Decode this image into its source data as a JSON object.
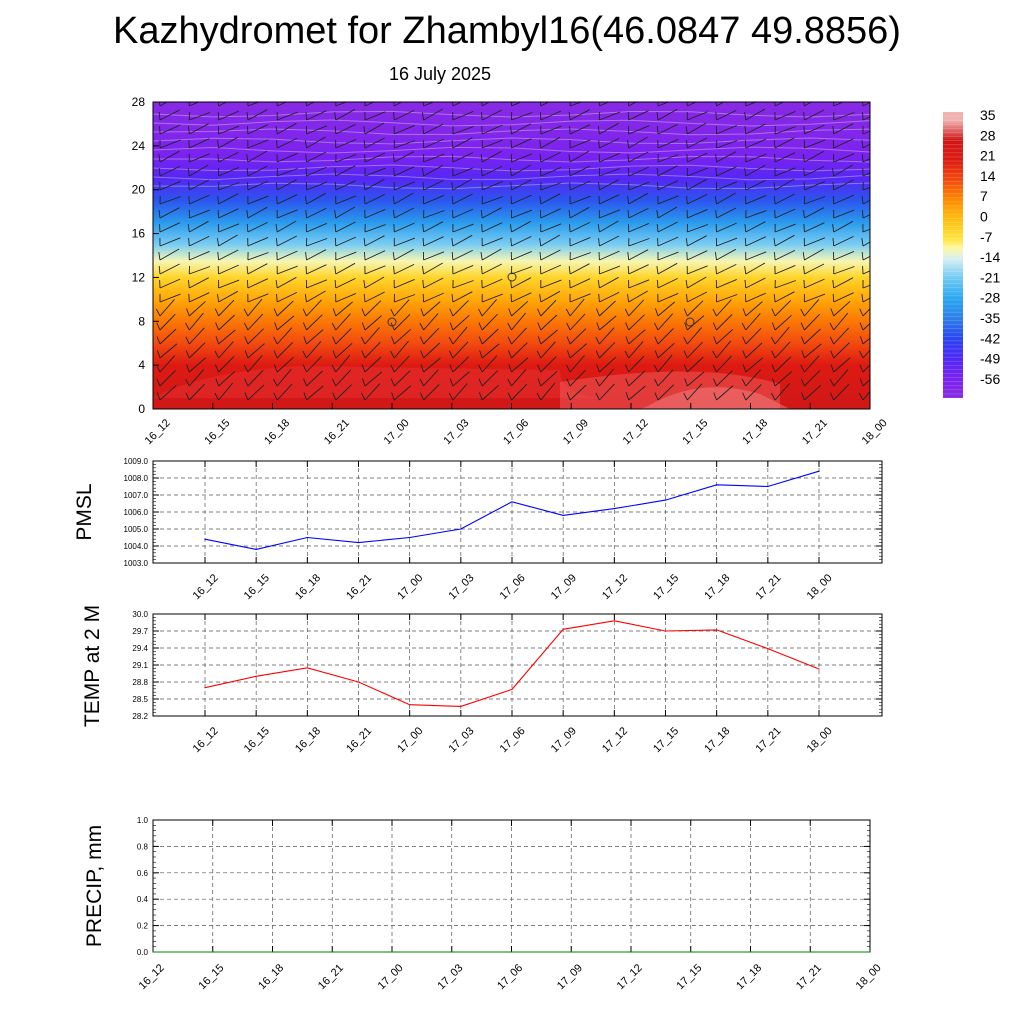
{
  "header": {
    "title": "Kazhydromet for Zhambyl16(46.0847 49.8856)",
    "subtitle": "16 July 2025"
  },
  "chart_data": [
    {
      "type": "heatmap",
      "x": [
        "16_12",
        "16_15",
        "16_18",
        "16_21",
        "17_00",
        "17_03",
        "17_06",
        "17_09",
        "17_12",
        "17_15",
        "17_18",
        "17_21",
        "18_00"
      ],
      "y_ticks": [
        0,
        4,
        8,
        12,
        16,
        20,
        24,
        28
      ],
      "ylim": [
        0,
        28
      ],
      "colorbar_ticks": [
        35,
        28,
        21,
        14,
        7,
        0,
        -7,
        -14,
        -21,
        -28,
        -35,
        -42,
        -49,
        -56
      ],
      "colorbar_range": [
        -63,
        38
      ],
      "color_stops": [
        {
          "value": -63,
          "color": "#8a2be2"
        },
        {
          "value": -56,
          "color": "#7a22f0"
        },
        {
          "value": -49,
          "color": "#4f28f5"
        },
        {
          "value": -42,
          "color": "#2a45f0"
        },
        {
          "value": -35,
          "color": "#2e7fe8"
        },
        {
          "value": -28,
          "color": "#29a6ee"
        },
        {
          "value": -21,
          "color": "#6bc8f3"
        },
        {
          "value": -14,
          "color": "#d6eef4"
        },
        {
          "value": -10,
          "color": "#fff8a0"
        },
        {
          "value": -7,
          "color": "#ffe640"
        },
        {
          "value": 0,
          "color": "#ffbe10"
        },
        {
          "value": 7,
          "color": "#ff8a00"
        },
        {
          "value": 14,
          "color": "#f24a10"
        },
        {
          "value": 21,
          "color": "#dd1a12"
        },
        {
          "value": 28,
          "color": "#d01818"
        },
        {
          "value": 35,
          "color": "#f0b0b0"
        }
      ],
      "temperature_profile": [
        {
          "height": 0,
          "value": 28
        },
        {
          "height": 2,
          "value": 25
        },
        {
          "height": 4,
          "value": 21
        },
        {
          "height": 6,
          "value": 14
        },
        {
          "height": 8,
          "value": 9
        },
        {
          "height": 10,
          "value": 3
        },
        {
          "height": 12,
          "value": -4
        },
        {
          "height": 13.5,
          "value": -11
        },
        {
          "height": 15,
          "value": -20
        },
        {
          "height": 17,
          "value": -30
        },
        {
          "height": 19,
          "value": -40
        },
        {
          "height": 21,
          "value": -50
        },
        {
          "height": 23,
          "value": -56
        },
        {
          "height": 25,
          "value": -59
        },
        {
          "height": 28,
          "value": -62
        }
      ],
      "grid": false
    },
    {
      "type": "line",
      "ylabel": "PMSL",
      "x": [
        "16_12",
        "16_15",
        "16_18",
        "16_21",
        "17_00",
        "17_03",
        "17_06",
        "17_09",
        "17_12",
        "17_15",
        "17_18",
        "17_21",
        "18_00"
      ],
      "y_ticks": [
        "1003.0",
        "1004.0",
        "1005.0",
        "1006.0",
        "1007.0",
        "1008.0",
        "1009.0"
      ],
      "ylim": [
        1003.0,
        1009.0
      ],
      "series": [
        {
          "values": [
            1004.4,
            1003.8,
            1004.5,
            1004.2,
            1004.5,
            1005.0,
            1006.6,
            1005.8,
            1006.2,
            1006.7,
            1007.6,
            1007.5,
            1008.4
          ],
          "color": "#0000ff"
        }
      ],
      "grid": true
    },
    {
      "type": "line",
      "ylabel": "TEMP at 2 M",
      "x": [
        "16_12",
        "16_15",
        "16_18",
        "16_21",
        "17_00",
        "17_03",
        "17_06",
        "17_09",
        "17_12",
        "17_15",
        "17_18",
        "17_21",
        "18_00"
      ],
      "y_ticks": [
        "28.2",
        "28.5",
        "28.8",
        "29.1",
        "29.4",
        "29.7",
        "30.0"
      ],
      "ylim": [
        28.2,
        30.0
      ],
      "series": [
        {
          "values": [
            28.7,
            28.9,
            29.05,
            28.8,
            28.4,
            28.37,
            28.67,
            29.73,
            29.88,
            29.7,
            29.72,
            29.39,
            29.03
          ],
          "color": "#ff0000"
        }
      ],
      "grid": true
    },
    {
      "type": "line",
      "ylabel": "PRECIP, mm",
      "x": [
        "16_12",
        "16_15",
        "16_18",
        "16_21",
        "17_00",
        "17_03",
        "17_06",
        "17_09",
        "17_12",
        "17_15",
        "17_18",
        "17_21",
        "18_00"
      ],
      "y_ticks": [
        "0.0",
        "0.2",
        "0.4",
        "0.6",
        "0.8",
        "1.0"
      ],
      "ylim": [
        0,
        1.0
      ],
      "series": [
        {
          "values": [
            0,
            0,
            0,
            0,
            0,
            0,
            0,
            0,
            0,
            0,
            0,
            0,
            0
          ],
          "color": "#008000"
        }
      ],
      "grid": true
    }
  ]
}
